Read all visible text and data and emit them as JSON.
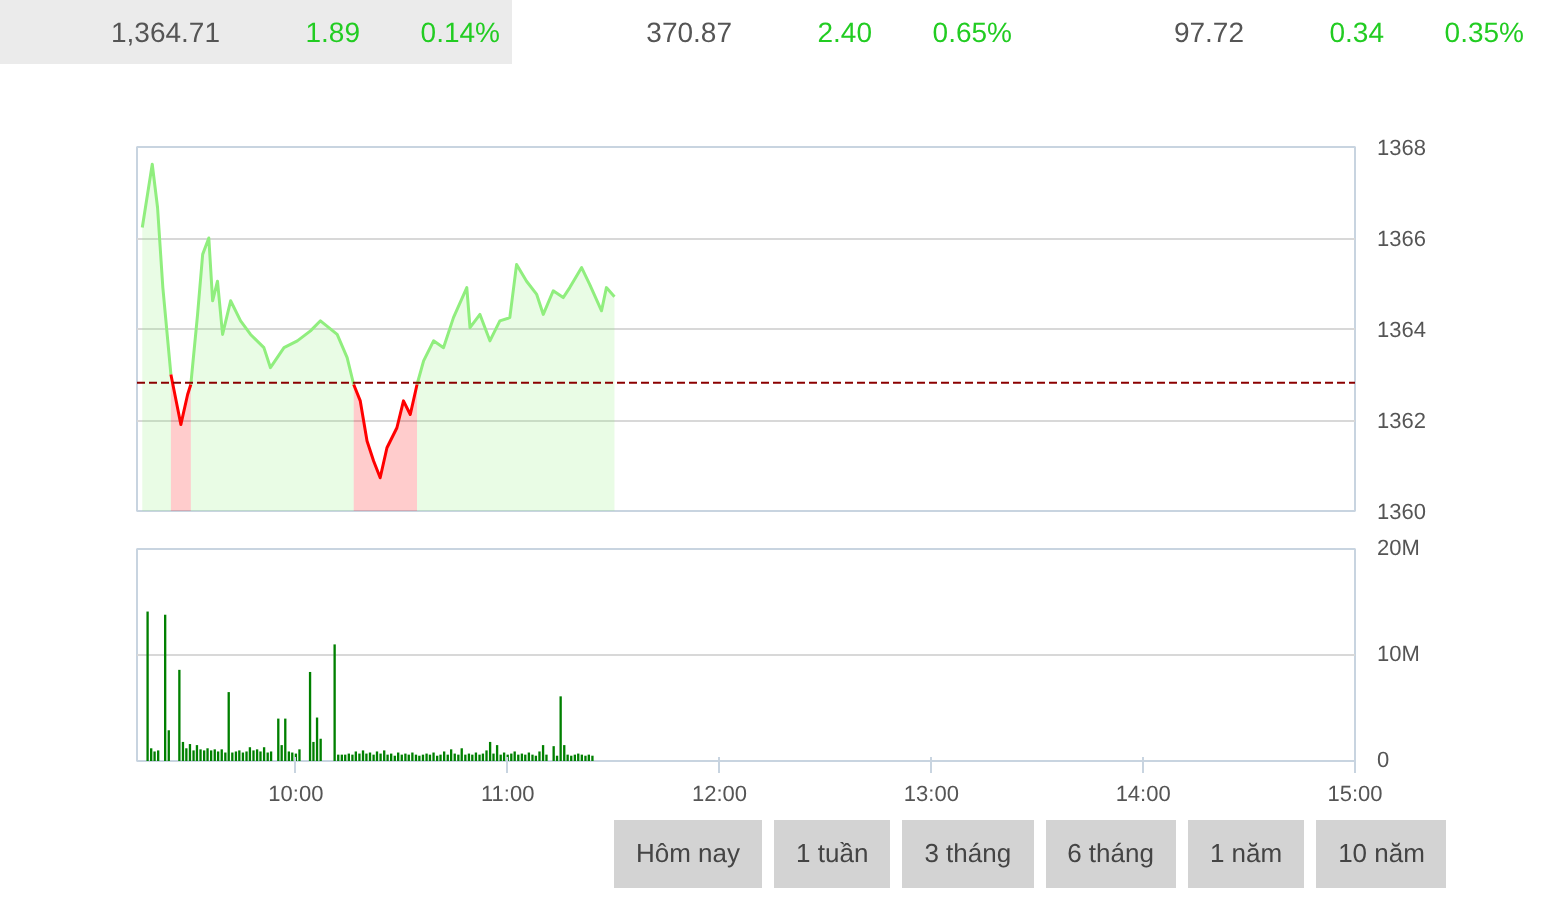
{
  "chart_data": [
    {
      "type": "other",
      "annotations": [
        "1,364.71",
        "1.89",
        "0.14%",
        "370.87",
        "2.40",
        "0.65%",
        "97.72",
        "0.34",
        "0.35%"
      ]
    },
    {
      "type": "area",
      "x": [
        9.275,
        9.322,
        9.347,
        9.372,
        9.41,
        9.457,
        9.489,
        9.504,
        9.536,
        9.56,
        9.589,
        9.607,
        9.63,
        9.654,
        9.692,
        9.739,
        9.786,
        9.849,
        9.88,
        9.944,
        10.007,
        10.069,
        10.116,
        10.195,
        10.242,
        10.273,
        10.304,
        10.336,
        10.367,
        10.398,
        10.43,
        10.477,
        10.508,
        10.54,
        10.572,
        10.603,
        10.65,
        10.697,
        10.744,
        10.807,
        10.822,
        10.869,
        10.916,
        10.963,
        11.01,
        11.042,
        11.089,
        11.137,
        11.168,
        11.215,
        11.262,
        11.293,
        11.349,
        11.387,
        11.443,
        11.466,
        11.504
      ],
      "series": [
        {
          "type": "area",
          "color": "#90ee7e",
          "values": [
            1366.23,
            1367.62,
            1366.67,
            1364.91,
            1363.0,
            null,
            null,
            1362.78,
            1364.32,
            1365.64,
            1366.0,
            1364.62,
            1365.05,
            1363.88,
            1364.62,
            1364.18,
            1363.88,
            1363.59,
            1363.15,
            1363.59,
            1363.74,
            1363.96,
            1364.18,
            1363.88,
            1363.37,
            1362.78,
            null,
            null,
            null,
            null,
            null,
            null,
            null,
            null,
            1362.78,
            1363.3,
            1363.74,
            1363.59,
            1364.25,
            1364.91,
            1364.03,
            1364.32,
            1363.74,
            1364.18,
            1364.25,
            1365.42,
            1365.05,
            1364.76,
            1364.32,
            1364.84,
            1364.69,
            1364.91,
            1365.35,
            1364.98,
            1364.4,
            1364.91,
            1364.71
          ]
        },
        {
          "type": "area",
          "color": "#ff0000",
          "values": [
            null,
            null,
            null,
            null,
            1363.0,
            1361.9,
            1362.56,
            1362.78,
            null,
            null,
            null,
            null,
            null,
            null,
            null,
            null,
            null,
            null,
            null,
            null,
            null,
            null,
            null,
            null,
            null,
            1362.78,
            1362.42,
            1361.54,
            1361.1,
            1360.73,
            1361.39,
            1361.83,
            1362.42,
            1362.12,
            1362.78,
            null,
            null,
            null,
            null,
            null,
            null,
            null,
            null,
            null,
            null,
            null,
            null,
            null,
            null,
            null,
            null,
            null,
            null,
            null,
            null,
            null,
            null
          ]
        }
      ],
      "xlim": [
        9.25,
        15
      ],
      "ylim": [
        1360,
        1368
      ],
      "yticks": [
        1360,
        1362,
        1364,
        1366,
        1368
      ],
      "ref_lines": [
        {
          "axis": "y",
          "value": 1362.82,
          "color": "#8b0000",
          "line_style": "dashed"
        }
      ],
      "grid": "y",
      "tick_labels": "y"
    },
    {
      "type": "bar",
      "x": [
        9.3,
        9.317,
        9.333,
        9.35,
        9.383,
        9.4,
        9.45,
        9.467,
        9.483,
        9.5,
        9.517,
        9.533,
        9.55,
        9.567,
        9.583,
        9.6,
        9.617,
        9.633,
        9.65,
        9.667,
        9.683,
        9.7,
        9.717,
        9.733,
        9.75,
        9.767,
        9.783,
        9.8,
        9.817,
        9.833,
        9.85,
        9.867,
        9.883,
        9.917,
        9.933,
        9.95,
        9.967,
        9.983,
        10.0,
        10.017,
        10.067,
        10.083,
        10.1,
        10.117,
        10.183,
        10.2,
        10.217,
        10.233,
        10.25,
        10.267,
        10.283,
        10.3,
        10.317,
        10.333,
        10.35,
        10.367,
        10.383,
        10.4,
        10.417,
        10.433,
        10.45,
        10.467,
        10.483,
        10.5,
        10.517,
        10.533,
        10.55,
        10.567,
        10.583,
        10.6,
        10.617,
        10.633,
        10.65,
        10.667,
        10.683,
        10.7,
        10.717,
        10.733,
        10.75,
        10.767,
        10.783,
        10.8,
        10.817,
        10.833,
        10.85,
        10.867,
        10.883,
        10.9,
        10.917,
        10.933,
        10.95,
        10.967,
        10.983,
        11.0,
        11.017,
        11.033,
        11.05,
        11.067,
        11.083,
        11.1,
        11.117,
        11.133,
        11.15,
        11.167,
        11.183,
        11.217,
        11.233,
        11.25,
        11.267,
        11.283,
        11.3,
        11.317,
        11.333,
        11.35,
        11.367,
        11.383,
        11.4
      ],
      "values": [
        14.1,
        1.2,
        0.9,
        1.0,
        13.8,
        2.9,
        8.6,
        1.8,
        1.2,
        1.6,
        1.0,
        1.5,
        1.1,
        1.0,
        1.2,
        1.0,
        1.1,
        0.9,
        1.1,
        0.8,
        6.5,
        0.8,
        0.9,
        1.0,
        0.8,
        0.9,
        1.3,
        1.0,
        1.1,
        0.9,
        1.3,
        0.8,
        0.9,
        4.0,
        1.5,
        4.0,
        0.9,
        0.8,
        0.7,
        1.1,
        8.4,
        1.8,
        4.1,
        2.1,
        11.0,
        0.6,
        0.6,
        0.6,
        0.7,
        0.6,
        0.9,
        0.7,
        1.0,
        0.7,
        0.8,
        0.6,
        0.9,
        0.7,
        1.0,
        0.6,
        0.7,
        0.5,
        0.8,
        0.6,
        0.7,
        0.6,
        0.8,
        0.6,
        0.5,
        0.6,
        0.7,
        0.6,
        0.8,
        0.5,
        0.6,
        0.9,
        0.6,
        1.1,
        0.7,
        0.6,
        1.2,
        0.6,
        0.7,
        0.6,
        0.8,
        0.6,
        0.7,
        1.0,
        1.8,
        0.7,
        1.5,
        0.6,
        0.8,
        0.6,
        0.7,
        0.9,
        0.6,
        0.7,
        0.6,
        0.8,
        0.6,
        0.5,
        0.9,
        1.5,
        0.6,
        1.4,
        0.5,
        6.1,
        1.5,
        0.6,
        0.5,
        0.6,
        0.7,
        0.6,
        0.5,
        0.6,
        0.5
      ],
      "color": "#008000",
      "xlim": [
        9.25,
        15
      ],
      "xticks": [
        {
          "value": 10,
          "label": "10:00"
        },
        {
          "value": 11,
          "label": "11:00"
        },
        {
          "value": 12,
          "label": "12:00"
        },
        {
          "value": 13,
          "label": "13:00"
        },
        {
          "value": 14,
          "label": "14:00"
        },
        {
          "value": 15,
          "label": "15:00"
        }
      ],
      "ylim": [
        0,
        20
      ],
      "yticks": [
        0,
        {
          "value": 10,
          "label": "10M"
        },
        {
          "value": 20,
          "label": "20M"
        }
      ],
      "grid": "y"
    },
    {
      "type": "other",
      "annotations": [
        "Hôm nay",
        "1 tuần",
        "3 tháng",
        "6 tháng",
        "1 năm",
        "10 năm"
      ]
    }
  ]
}
